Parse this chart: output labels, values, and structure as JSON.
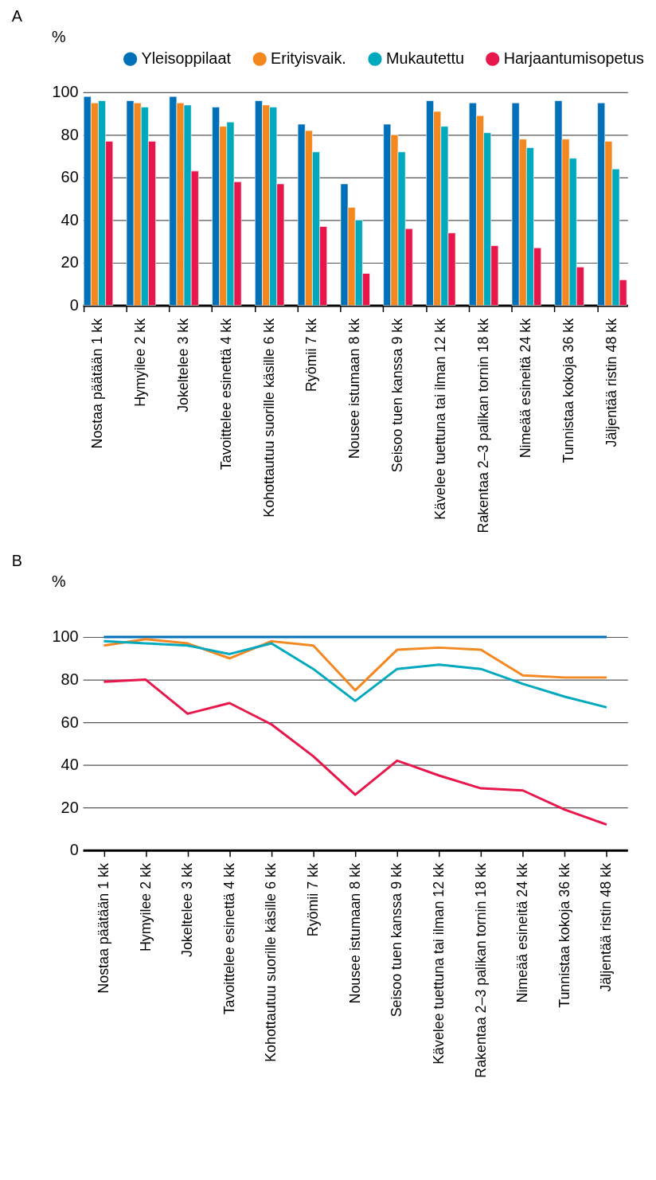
{
  "chart_data": [
    {
      "type": "bar",
      "title": "A",
      "ylabel": "%",
      "categories": [
        "Nostaa päätään 1 kk",
        "Hymyilee 2 kk",
        "Jokeltelee 3 kk",
        "Tavoittelee esinettä 4 kk",
        "Kohottautuu suorille käsille 6 kk",
        "Ryömii 7 kk",
        "Nousee istumaan 8 kk",
        "Seisoo tuen kanssa 9 kk",
        "Kävelee tuettuna tai ilman 12 kk",
        "Rakentaa 2–3 palikan tornin 18 kk",
        "Nimeää esineitä 24 kk",
        "Tunnistaa kokoja 36 kk",
        "Jäljentää ristin 48 kk"
      ],
      "series": [
        {
          "name": "Yleisoppilaat",
          "color": "#0070b8",
          "values": [
            98,
            96,
            98,
            93,
            96,
            85,
            57,
            85,
            96,
            95,
            95,
            96,
            95
          ]
        },
        {
          "name": "Erityisvaik.",
          "color": "#f5871f",
          "values": [
            95,
            95,
            95,
            84,
            94,
            82,
            46,
            80,
            91,
            89,
            78,
            78,
            77
          ]
        },
        {
          "name": "Mukautettu",
          "color": "#00a9bd",
          "values": [
            96,
            93,
            94,
            86,
            93,
            72,
            40,
            72,
            84,
            81,
            74,
            69,
            64
          ]
        },
        {
          "name": "Harjaantumisopetus",
          "color": "#e8174b",
          "values": [
            77,
            77,
            63,
            58,
            57,
            37,
            15,
            36,
            34,
            28,
            27,
            18,
            12
          ]
        }
      ],
      "ylim": [
        0,
        100
      ],
      "yticks": [
        0,
        20,
        40,
        60,
        80,
        100
      ],
      "grid": "y",
      "legend": "top"
    },
    {
      "type": "line",
      "title": "B",
      "ylabel": "%",
      "categories": [
        "Nostaa päätään 1 kk",
        "Hymyilee 2 kk",
        "Jokeltelee 3 kk",
        "Tavoittelee esinettä 4 kk",
        "Kohottautuu suorille käsille 6 kk",
        "Ryömii 7 kk",
        "Nousee istumaan 8 kk",
        "Seisoo tuen kanssa 9 kk",
        "Kävelee tuettuna tai ilman 12 kk",
        "Rakentaa 2–3 palikan tornin 18 kk",
        "Nimeää esineitä 24 kk",
        "Tunnistaa kokoja 36 kk",
        "Jäljentää ristin 48 kk"
      ],
      "series": [
        {
          "name": "Yleisoppilaat",
          "color": "#0070b8",
          "values": [
            100,
            100,
            100,
            100,
            100,
            100,
            100,
            100,
            100,
            100,
            100,
            100,
            100
          ]
        },
        {
          "name": "Erityisvaik.",
          "color": "#f5871f",
          "values": [
            96,
            99,
            97,
            90,
            98,
            96,
            75,
            94,
            95,
            94,
            82,
            81,
            81
          ]
        },
        {
          "name": "Mukautettu",
          "color": "#00a9bd",
          "values": [
            98,
            97,
            96,
            92,
            97,
            85,
            70,
            85,
            87,
            85,
            78,
            72,
            67
          ]
        },
        {
          "name": "Harjaantumisopetus",
          "color": "#e8174b",
          "values": [
            79,
            80,
            64,
            69,
            59,
            44,
            26,
            42,
            35,
            29,
            28,
            19,
            12
          ]
        }
      ],
      "ylim": [
        0,
        100
      ],
      "yticks": [
        0,
        20,
        40,
        60,
        80,
        100
      ],
      "grid": "y",
      "legend": "top",
      "marker": "none",
      "line_style": "solid"
    }
  ]
}
